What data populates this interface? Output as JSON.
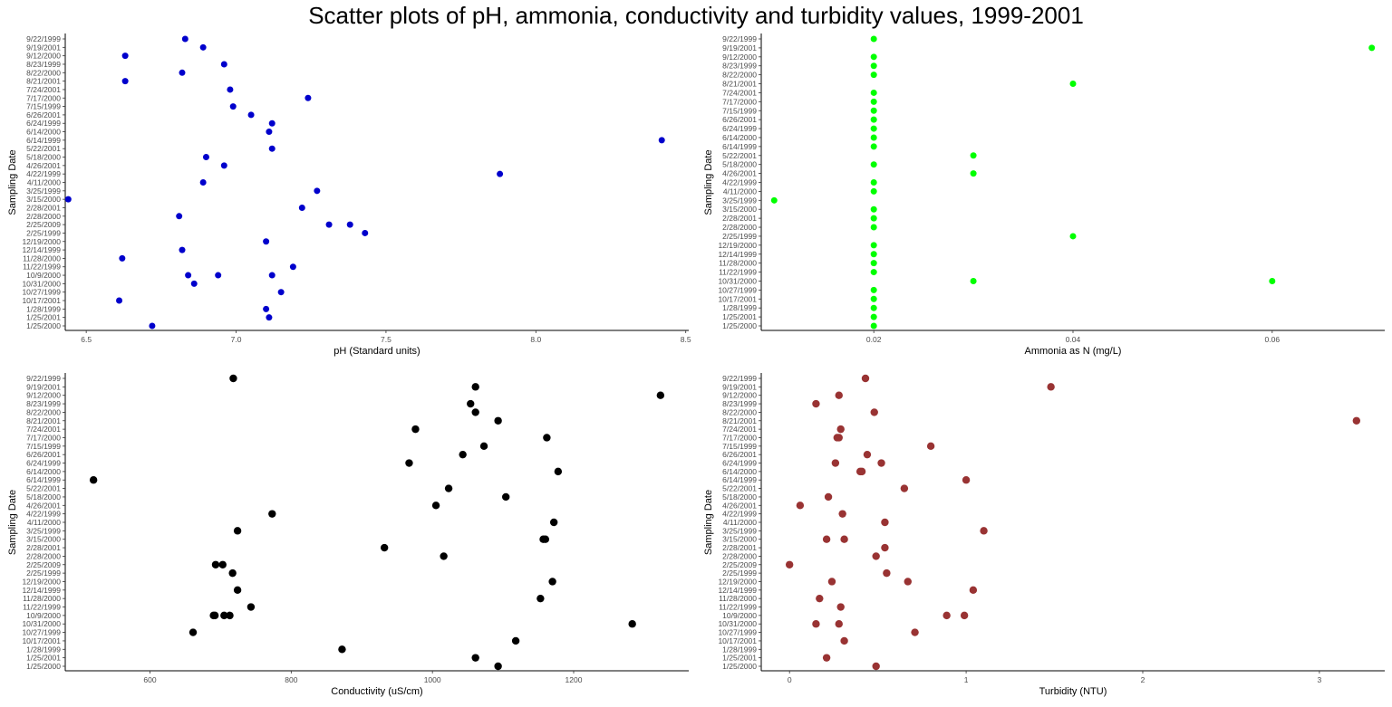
{
  "title": "Scatter plots of pH, ammonia, conductivity and turbidity values, 1999-2001",
  "chart_data": [
    {
      "type": "scatter",
      "xlabel": "pH (Standard units)",
      "ylabel": "Sampling Date",
      "xlim": [
        6.43,
        8.51
      ],
      "xticks": [
        6.5,
        7.0,
        7.5,
        8.0,
        8.5
      ],
      "xtick_labels": [
        "6.5",
        "7.0",
        "7.5",
        "8.0",
        "8.5"
      ],
      "color": "#0000cc",
      "marker_size": 3.5,
      "dates": [
        "9/22/1999",
        "9/19/2001",
        "9/12/2000",
        "8/23/1999",
        "8/22/2000",
        "8/21/2001",
        "7/24/2001",
        "7/17/2000",
        "7/15/1999",
        "6/26/2001",
        "6/24/1999",
        "6/14/2000",
        "6/14/1999",
        "5/22/2001",
        "5/18/2000",
        "4/26/2001",
        "4/22/1999",
        "4/11/2000",
        "3/25/1999",
        "3/15/2000",
        "2/28/2001",
        "2/28/2000",
        "2/25/2009",
        "2/25/1999",
        "12/19/2000",
        "12/14/1999",
        "11/28/2000",
        "11/22/1999",
        "10/9/2000",
        "10/31/2000",
        "10/27/1999",
        "10/17/2001",
        "1/28/1999",
        "1/25/2001",
        "1/25/2000"
      ],
      "points": [
        {
          "date": "9/22/1999",
          "x": 6.83
        },
        {
          "date": "9/19/2001",
          "x": 6.89
        },
        {
          "date": "9/12/2000",
          "x": 6.63
        },
        {
          "date": "8/23/1999",
          "x": 6.96
        },
        {
          "date": "8/22/2000",
          "x": 6.82
        },
        {
          "date": "8/21/2001",
          "x": 6.63
        },
        {
          "date": "7/24/2001",
          "x": 6.98
        },
        {
          "date": "7/17/2000",
          "x": 7.24
        },
        {
          "date": "7/15/1999",
          "x": 6.99
        },
        {
          "date": "6/26/2001",
          "x": 7.05
        },
        {
          "date": "6/24/1999",
          "x": 7.12
        },
        {
          "date": "6/14/2000",
          "x": 7.11
        },
        {
          "date": "6/14/1999",
          "x": 8.42
        },
        {
          "date": "5/22/2001",
          "x": 7.12
        },
        {
          "date": "5/18/2000",
          "x": 6.9
        },
        {
          "date": "4/26/2001",
          "x": 6.96
        },
        {
          "date": "4/22/1999",
          "x": 7.88
        },
        {
          "date": "4/11/2000",
          "x": 6.89
        },
        {
          "date": "3/25/1999",
          "x": 7.27
        },
        {
          "date": "3/15/2000",
          "x": 6.44
        },
        {
          "date": "2/28/2001",
          "x": 7.22
        },
        {
          "date": "2/28/2000",
          "x": 6.81
        },
        {
          "date": "2/25/2009",
          "x": 7.31
        },
        {
          "date": "2/25/2009",
          "x": 7.38
        },
        {
          "date": "2/25/1999",
          "x": 7.43
        },
        {
          "date": "12/19/2000",
          "x": 7.1
        },
        {
          "date": "12/14/1999",
          "x": 6.82
        },
        {
          "date": "11/28/2000",
          "x": 6.62
        },
        {
          "date": "11/22/1999",
          "x": 7.19
        },
        {
          "date": "10/9/2000",
          "x": 6.84
        },
        {
          "date": "10/9/2000",
          "x": 6.94
        },
        {
          "date": "10/9/2000",
          "x": 7.12
        },
        {
          "date": "10/31/2000",
          "x": 6.86
        },
        {
          "date": "10/27/1999",
          "x": 7.15
        },
        {
          "date": "10/17/2001",
          "x": 6.61
        },
        {
          "date": "1/28/1999",
          "x": 7.1
        },
        {
          "date": "1/25/2001",
          "x": 7.11
        },
        {
          "date": "1/25/2000",
          "x": 6.72
        }
      ]
    },
    {
      "type": "scatter",
      "xlabel": "Ammonia as N (mg/L)",
      "ylabel": "Sampling Date",
      "xlim": [
        0.0087,
        0.0713
      ],
      "xticks": [
        0.02,
        0.04,
        0.06
      ],
      "xtick_labels": [
        "0.02",
        "0.04",
        "0.06"
      ],
      "color": "#00ff00",
      "marker_size": 3.5,
      "dates": [
        "9/22/1999",
        "9/19/2001",
        "9/12/2000",
        "8/23/1999",
        "8/22/2000",
        "8/21/2001",
        "7/24/2001",
        "7/17/2000",
        "7/15/1999",
        "6/26/2001",
        "6/24/1999",
        "6/14/2000",
        "6/14/1999",
        "5/22/2001",
        "5/18/2000",
        "4/26/2001",
        "4/22/1999",
        "4/11/2000",
        "3/25/1999",
        "3/15/2000",
        "2/28/2001",
        "2/28/2000",
        "2/25/1999",
        "12/19/2000",
        "12/14/1999",
        "11/28/2000",
        "11/22/1999",
        "10/31/2000",
        "10/27/1999",
        "10/17/2001",
        "1/28/1999",
        "1/25/2001",
        "1/25/2000"
      ],
      "points": [
        {
          "date": "9/22/1999",
          "x": 0.02
        },
        {
          "date": "9/19/2001",
          "x": 0.07
        },
        {
          "date": "9/12/2000",
          "x": 0.02
        },
        {
          "date": "8/23/1999",
          "x": 0.02
        },
        {
          "date": "8/22/2000",
          "x": 0.02
        },
        {
          "date": "8/21/2001",
          "x": 0.04
        },
        {
          "date": "7/24/2001",
          "x": 0.02
        },
        {
          "date": "7/17/2000",
          "x": 0.02
        },
        {
          "date": "7/15/1999",
          "x": 0.02
        },
        {
          "date": "6/26/2001",
          "x": 0.02
        },
        {
          "date": "6/24/1999",
          "x": 0.02
        },
        {
          "date": "6/14/2000",
          "x": 0.02
        },
        {
          "date": "6/14/1999",
          "x": 0.02
        },
        {
          "date": "5/22/2001",
          "x": 0.03
        },
        {
          "date": "5/18/2000",
          "x": 0.02
        },
        {
          "date": "4/26/2001",
          "x": 0.03
        },
        {
          "date": "4/22/1999",
          "x": 0.02
        },
        {
          "date": "4/11/2000",
          "x": 0.02
        },
        {
          "date": "3/25/1999",
          "x": 0.01
        },
        {
          "date": "3/15/2000",
          "x": 0.02
        },
        {
          "date": "2/28/2001",
          "x": 0.02
        },
        {
          "date": "2/28/2000",
          "x": 0.02
        },
        {
          "date": "2/25/1999",
          "x": 0.04
        },
        {
          "date": "12/19/2000",
          "x": 0.02
        },
        {
          "date": "12/14/1999",
          "x": 0.02
        },
        {
          "date": "11/28/2000",
          "x": 0.02
        },
        {
          "date": "11/22/1999",
          "x": 0.02
        },
        {
          "date": "10/31/2000",
          "x": 0.03
        },
        {
          "date": "10/31/2000",
          "x": 0.06
        },
        {
          "date": "10/27/1999",
          "x": 0.02
        },
        {
          "date": "10/17/2001",
          "x": 0.02
        },
        {
          "date": "1/28/1999",
          "x": 0.02
        },
        {
          "date": "1/25/2001",
          "x": 0.02
        },
        {
          "date": "1/25/2000",
          "x": 0.02
        }
      ]
    },
    {
      "type": "scatter",
      "xlabel": "Conductivity (uS/cm)",
      "ylabel": "Sampling Date",
      "xlim": [
        480,
        1363
      ],
      "xticks": [
        600,
        800,
        1000,
        1200
      ],
      "xtick_labels": [
        "600",
        "800",
        "1000",
        "1200"
      ],
      "color": "#000000",
      "marker_size": 4.2,
      "dates": [
        "9/22/1999",
        "9/19/2001",
        "9/12/2000",
        "8/23/1999",
        "8/22/2000",
        "8/21/2001",
        "7/24/2001",
        "7/17/2000",
        "7/15/1999",
        "6/26/2001",
        "6/24/1999",
        "6/14/2000",
        "6/14/1999",
        "5/22/2001",
        "5/18/2000",
        "4/26/2001",
        "4/22/1999",
        "4/11/2000",
        "3/25/1999",
        "3/15/2000",
        "2/28/2001",
        "2/28/2000",
        "2/25/2009",
        "2/25/1999",
        "12/19/2000",
        "12/14/1999",
        "11/28/2000",
        "11/22/1999",
        "10/9/2000",
        "10/31/2000",
        "10/27/1999",
        "10/17/2001",
        "1/28/1999",
        "1/25/2001",
        "1/25/2000"
      ],
      "points": [
        {
          "date": "9/22/1999",
          "x": 718
        },
        {
          "date": "9/19/2001",
          "x": 1061
        },
        {
          "date": "9/12/2000",
          "x": 1323
        },
        {
          "date": "8/23/1999",
          "x": 1054
        },
        {
          "date": "8/22/2000",
          "x": 1061
        },
        {
          "date": "8/21/2001",
          "x": 1093
        },
        {
          "date": "7/24/2001",
          "x": 976
        },
        {
          "date": "7/17/2000",
          "x": 1162
        },
        {
          "date": "7/15/1999",
          "x": 1073
        },
        {
          "date": "6/26/2001",
          "x": 1043
        },
        {
          "date": "6/24/1999",
          "x": 967
        },
        {
          "date": "6/14/2000",
          "x": 1178
        },
        {
          "date": "6/14/1999",
          "x": 520
        },
        {
          "date": "5/22/2001",
          "x": 1023
        },
        {
          "date": "5/18/2000",
          "x": 1104
        },
        {
          "date": "4/26/2001",
          "x": 1005
        },
        {
          "date": "4/22/1999",
          "x": 773
        },
        {
          "date": "4/11/2000",
          "x": 1172
        },
        {
          "date": "3/25/1999",
          "x": 724
        },
        {
          "date": "3/15/2000",
          "x": 1160
        },
        {
          "date": "3/15/2000",
          "x": 1157
        },
        {
          "date": "2/28/2001",
          "x": 932
        },
        {
          "date": "2/28/2000",
          "x": 1016
        },
        {
          "date": "2/25/2009",
          "x": 693
        },
        {
          "date": "2/25/2009",
          "x": 703
        },
        {
          "date": "2/25/1999",
          "x": 717
        },
        {
          "date": "12/19/2000",
          "x": 1170
        },
        {
          "date": "12/14/1999",
          "x": 724
        },
        {
          "date": "11/28/2000",
          "x": 1153
        },
        {
          "date": "11/22/1999",
          "x": 743
        },
        {
          "date": "10/9/2000",
          "x": 690
        },
        {
          "date": "10/9/2000",
          "x": 692
        },
        {
          "date": "10/9/2000",
          "x": 705
        },
        {
          "date": "10/9/2000",
          "x": 713
        },
        {
          "date": "10/31/2000",
          "x": 1283
        },
        {
          "date": "10/27/1999",
          "x": 661
        },
        {
          "date": "10/17/2001",
          "x": 1118
        },
        {
          "date": "1/28/1999",
          "x": 872
        },
        {
          "date": "1/25/2001",
          "x": 1061
        },
        {
          "date": "1/25/2000",
          "x": 1093
        }
      ]
    },
    {
      "type": "scatter",
      "xlabel": "Turbidity (NTU)",
      "ylabel": "Sampling Date",
      "xlim": [
        -0.16,
        3.37
      ],
      "xticks": [
        0,
        1,
        2,
        3
      ],
      "xtick_labels": [
        "0",
        "1",
        "2",
        "3"
      ],
      "color": "#993333",
      "marker_size": 4.2,
      "dates": [
        "9/22/1999",
        "9/19/2001",
        "9/12/2000",
        "8/23/1999",
        "8/22/2000",
        "8/21/2001",
        "7/24/2001",
        "7/17/2000",
        "7/15/1999",
        "6/26/2001",
        "6/24/1999",
        "6/14/2000",
        "6/14/1999",
        "5/22/2001",
        "5/18/2000",
        "4/26/2001",
        "4/22/1999",
        "4/11/2000",
        "3/25/1999",
        "3/15/2000",
        "2/28/2001",
        "2/28/2000",
        "2/25/2009",
        "2/25/1999",
        "12/19/2000",
        "12/14/1999",
        "11/28/2000",
        "11/22/1999",
        "10/9/2000",
        "10/31/2000",
        "10/27/1999",
        "10/17/2001",
        "1/28/1999",
        "1/25/2001",
        "1/25/2000"
      ],
      "points": [
        {
          "date": "9/22/1999",
          "x": 0.43
        },
        {
          "date": "9/19/2001",
          "x": 1.48
        },
        {
          "date": "9/12/2000",
          "x": 0.28
        },
        {
          "date": "8/23/1999",
          "x": 0.15
        },
        {
          "date": "8/22/2000",
          "x": 0.48
        },
        {
          "date": "8/21/2001",
          "x": 3.21
        },
        {
          "date": "7/24/2001",
          "x": 0.29
        },
        {
          "date": "7/17/2000",
          "x": 0.27
        },
        {
          "date": "7/17/2000",
          "x": 0.28
        },
        {
          "date": "7/15/1999",
          "x": 0.8
        },
        {
          "date": "6/26/2001",
          "x": 0.44
        },
        {
          "date": "6/24/1999",
          "x": 0.26
        },
        {
          "date": "6/24/1999",
          "x": 0.52
        },
        {
          "date": "6/14/2000",
          "x": 0.4
        },
        {
          "date": "6/14/2000",
          "x": 0.41
        },
        {
          "date": "6/14/1999",
          "x": 1.0
        },
        {
          "date": "5/22/2001",
          "x": 0.65
        },
        {
          "date": "5/18/2000",
          "x": 0.22
        },
        {
          "date": "4/26/2001",
          "x": 0.06
        },
        {
          "date": "4/22/1999",
          "x": 0.3
        },
        {
          "date": "4/11/2000",
          "x": 0.54
        },
        {
          "date": "3/25/1999",
          "x": 1.1
        },
        {
          "date": "3/15/2000",
          "x": 0.21
        },
        {
          "date": "3/15/2000",
          "x": 0.31
        },
        {
          "date": "2/28/2001",
          "x": 0.54
        },
        {
          "date": "2/28/2000",
          "x": 0.49
        },
        {
          "date": "2/25/2009",
          "x": 0.0
        },
        {
          "date": "2/25/1999",
          "x": 0.55
        },
        {
          "date": "12/19/2000",
          "x": 0.24
        },
        {
          "date": "12/19/2000",
          "x": 0.67
        },
        {
          "date": "12/14/1999",
          "x": 1.04
        },
        {
          "date": "11/28/2000",
          "x": 0.17
        },
        {
          "date": "11/22/1999",
          "x": 0.29
        },
        {
          "date": "10/9/2000",
          "x": 0.89
        },
        {
          "date": "10/9/2000",
          "x": 0.99
        },
        {
          "date": "10/31/2000",
          "x": 0.15
        },
        {
          "date": "10/31/2000",
          "x": 0.28
        },
        {
          "date": "10/27/1999",
          "x": 0.71
        },
        {
          "date": "10/17/2001",
          "x": 0.31
        },
        {
          "date": "1/25/2001",
          "x": 0.21
        },
        {
          "date": "1/25/2000",
          "x": 0.49
        }
      ]
    }
  ]
}
